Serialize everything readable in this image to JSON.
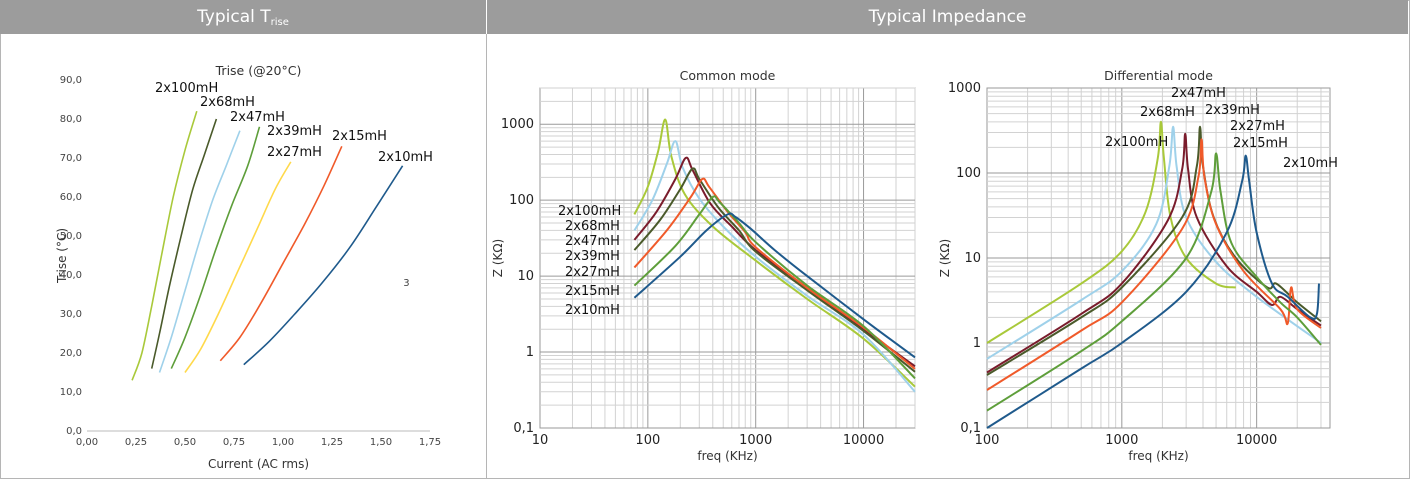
{
  "header": {
    "left_title": "Typical T",
    "left_title_sub": "rise",
    "right_title": "Typical Impedance"
  },
  "colors": {
    "2x100mH": "#a9c93a",
    "2x68mH": "#9fd1ea",
    "2x47mH": "#7a1c2c",
    "2x39mH": "#4a5a2a",
    "2x27mH": "#f08a2c",
    "2x15mH": "#5e9e3a",
    "2x10mH": "#1f5a8c"
  },
  "chart_data": [
    {
      "type": "line",
      "title": "Trise (@20°C)",
      "xlabel": "Current (AC rms)",
      "ylabel": "Trise (°C)",
      "xlim": [
        0,
        1.75
      ],
      "ylim": [
        0,
        90
      ],
      "xticks": [
        "0,00",
        "0,25",
        "0,50",
        "0,75",
        "1,00",
        "1,25",
        "1,50",
        "1,75"
      ],
      "yticks": [
        "0,0",
        "10,0",
        "20,0",
        "30,0",
        "40,0",
        "50,0",
        "60,0",
        "70,0",
        "80,0",
        "90,0"
      ],
      "annotation": "3",
      "series": [
        {
          "name": "2x100mH",
          "color": "#a9c93a",
          "points": [
            [
              0.23,
              13
            ],
            [
              0.28,
              20
            ],
            [
              0.33,
              32
            ],
            [
              0.38,
              45
            ],
            [
              0.44,
              60
            ],
            [
              0.5,
              72
            ],
            [
              0.56,
              82
            ]
          ]
        },
        {
          "name": "2x68mH",
          "color": "#4a5a2a",
          "points": [
            [
              0.33,
              16
            ],
            [
              0.37,
              25
            ],
            [
              0.42,
              37
            ],
            [
              0.48,
              50
            ],
            [
              0.54,
              62
            ],
            [
              0.6,
              71
            ],
            [
              0.66,
              80
            ]
          ]
        },
        {
          "name": "2x47mH",
          "color": "#9fd1ea",
          "points": [
            [
              0.37,
              15
            ],
            [
              0.43,
              24
            ],
            [
              0.5,
              36
            ],
            [
              0.57,
              48
            ],
            [
              0.64,
              59
            ],
            [
              0.71,
              68
            ],
            [
              0.78,
              77
            ]
          ]
        },
        {
          "name": "2x39mH",
          "color": "#5e9e3a",
          "points": [
            [
              0.43,
              16
            ],
            [
              0.5,
              24
            ],
            [
              0.58,
              35
            ],
            [
              0.66,
              47
            ],
            [
              0.74,
              58
            ],
            [
              0.82,
              68
            ],
            [
              0.88,
              78
            ]
          ]
        },
        {
          "name": "2x27mH",
          "color": "#ffd94a",
          "points": [
            [
              0.5,
              15
            ],
            [
              0.58,
              21
            ],
            [
              0.67,
              30
            ],
            [
              0.77,
              41
            ],
            [
              0.87,
              52
            ],
            [
              0.96,
              62
            ],
            [
              1.04,
              69
            ]
          ]
        },
        {
          "name": "2x15mH",
          "color": "#f05a2a",
          "points": [
            [
              0.68,
              18
            ],
            [
              0.78,
              24
            ],
            [
              0.89,
              33
            ],
            [
              1.0,
              43
            ],
            [
              1.11,
              53
            ],
            [
              1.21,
              63
            ],
            [
              1.3,
              73
            ]
          ]
        },
        {
          "name": "2x10mH",
          "color": "#1f5a8c",
          "points": [
            [
              0.8,
              17
            ],
            [
              0.93,
              23
            ],
            [
              1.06,
              30
            ],
            [
              1.2,
              38
            ],
            [
              1.34,
              47
            ],
            [
              1.47,
              57
            ],
            [
              1.61,
              68
            ]
          ]
        }
      ]
    },
    {
      "type": "line",
      "title": "Common mode",
      "xlabel": "freq (KHz)",
      "ylabel": "Z (KΩ)",
      "xscale": "log",
      "yscale": "log",
      "xlim": [
        10,
        30000
      ],
      "ylim": [
        0.1,
        3000
      ],
      "xticks": [
        "10",
        "100",
        "1000",
        "10000"
      ],
      "yticks": [
        "0,1",
        "1",
        "10",
        "100",
        "1000"
      ],
      "series": [
        {
          "name": "2x100mH",
          "color": "#a9c93a",
          "points": [
            [
              75,
              65
            ],
            [
              100,
              150
            ],
            [
              125,
              450
            ],
            [
              145,
              1150
            ],
            [
              165,
              380
            ],
            [
              220,
              120
            ],
            [
              400,
              45
            ],
            [
              1000,
              16
            ],
            [
              3000,
              5
            ],
            [
              10000,
              1.5
            ],
            [
              30000,
              0.35
            ]
          ]
        },
        {
          "name": "2x68mH",
          "color": "#9fd1ea",
          "points": [
            [
              75,
              40
            ],
            [
              110,
              100
            ],
            [
              150,
              300
            ],
            [
              180,
              600
            ],
            [
              210,
              270
            ],
            [
              300,
              105
            ],
            [
              500,
              45
            ],
            [
              1000,
              18
            ],
            [
              3000,
              5.5
            ],
            [
              10000,
              1.7
            ],
            [
              30000,
              0.3
            ]
          ]
        },
        {
          "name": "2x47mH",
          "color": "#7a1c2c",
          "points": [
            [
              75,
              30
            ],
            [
              120,
              70
            ],
            [
              180,
              190
            ],
            [
              225,
              360
            ],
            [
              260,
              250
            ],
            [
              380,
              90
            ],
            [
              600,
              45
            ],
            [
              1000,
              22
            ],
            [
              3000,
              7
            ],
            [
              10000,
              2
            ],
            [
              30000,
              0.65
            ]
          ]
        },
        {
          "name": "2x39mH",
          "color": "#4a5a2a",
          "points": [
            [
              75,
              22
            ],
            [
              130,
              55
            ],
            [
              200,
              140
            ],
            [
              260,
              260
            ],
            [
              300,
              190
            ],
            [
              450,
              80
            ],
            [
              700,
              40
            ],
            [
              1000,
              21
            ],
            [
              3000,
              6.5
            ],
            [
              10000,
              1.9
            ],
            [
              30000,
              0.55
            ]
          ]
        },
        {
          "name": "2x27mH",
          "color": "#f05a2a",
          "points": [
            [
              75,
              13
            ],
            [
              150,
              40
            ],
            [
              250,
              110
            ],
            [
              320,
              190
            ],
            [
              370,
              150
            ],
            [
              550,
              70
            ],
            [
              800,
              38
            ],
            [
              1000,
              24
            ],
            [
              3000,
              7
            ],
            [
              10000,
              2.1
            ],
            [
              30000,
              0.6
            ]
          ]
        },
        {
          "name": "2x15mH",
          "color": "#5e9e3a",
          "points": [
            [
              75,
              7.5
            ],
            [
              180,
              25
            ],
            [
              300,
              65
            ],
            [
              400,
              110
            ],
            [
              460,
              95
            ],
            [
              700,
              50
            ],
            [
              1000,
              28
            ],
            [
              3000,
              7.5
            ],
            [
              10000,
              2.2
            ],
            [
              30000,
              0.45
            ]
          ]
        },
        {
          "name": "2x10mH",
          "color": "#1f5a8c",
          "points": [
            [
              75,
              5.2
            ],
            [
              200,
              18
            ],
            [
              350,
              40
            ],
            [
              550,
              65
            ],
            [
              650,
              60
            ],
            [
              900,
              42
            ],
            [
              1500,
              22
            ],
            [
              3000,
              10
            ],
            [
              10000,
              2.7
            ],
            [
              30000,
              0.85
            ]
          ]
        }
      ]
    },
    {
      "type": "line",
      "title": "Differential  mode",
      "xlabel": "freq (KHz)",
      "ylabel": "Z (KΩ)",
      "xscale": "log",
      "yscale": "log",
      "xlim": [
        100,
        35000
      ],
      "ylim": [
        0.1,
        1000
      ],
      "xticks": [
        "100",
        "1000",
        "10000"
      ],
      "yticks": [
        "0,1",
        "1",
        "10",
        "100",
        "1000"
      ],
      "series": [
        {
          "name": "2x100mH",
          "color": "#a9c93a",
          "points": [
            [
              100,
              1
            ],
            [
              500,
              5
            ],
            [
              1000,
              12
            ],
            [
              1500,
              35
            ],
            [
              1850,
              150
            ],
            [
              1950,
              400
            ],
            [
              2050,
              150
            ],
            [
              2300,
              30
            ],
            [
              3000,
              10
            ],
            [
              5000,
              5
            ],
            [
              7000,
              4.5
            ]
          ]
        },
        {
          "name": "2x68mH",
          "color": "#9fd1ea",
          "points": [
            [
              100,
              0.65
            ],
            [
              500,
              3.2
            ],
            [
              1000,
              7
            ],
            [
              1800,
              25
            ],
            [
              2250,
              120
            ],
            [
              2400,
              350
            ],
            [
              2550,
              120
            ],
            [
              3000,
              30
            ],
            [
              5000,
              9
            ],
            [
              10000,
              3.5
            ],
            [
              30000,
              1
            ]
          ]
        },
        {
          "name": "2x47mH",
          "color": "#7a1c2c",
          "points": [
            [
              100,
              0.45
            ],
            [
              500,
              2.2
            ],
            [
              1000,
              5
            ],
            [
              2200,
              28
            ],
            [
              2800,
              110
            ],
            [
              2950,
              290
            ],
            [
              3100,
              110
            ],
            [
              3600,
              30
            ],
            [
              6000,
              8
            ],
            [
              10000,
              4
            ],
            [
              13000,
              2.8
            ],
            [
              15000,
              3.5
            ],
            [
              20000,
              2.5
            ],
            [
              30000,
              1.6
            ]
          ]
        },
        {
          "name": "2x39mH",
          "color": "#4a5a2a",
          "points": [
            [
              100,
              0.42
            ],
            [
              500,
              2
            ],
            [
              1000,
              4.5
            ],
            [
              2800,
              30
            ],
            [
              3600,
              120
            ],
            [
              3800,
              350
            ],
            [
              4000,
              120
            ],
            [
              4800,
              30
            ],
            [
              7000,
              10
            ],
            [
              12000,
              4.5
            ],
            [
              14000,
              5
            ],
            [
              20000,
              3
            ],
            [
              30000,
              1.8
            ]
          ]
        },
        {
          "name": "2x27mH",
          "color": "#f05a2a",
          "points": [
            [
              100,
              0.28
            ],
            [
              500,
              1.4
            ],
            [
              1000,
              3
            ],
            [
              2800,
              22
            ],
            [
              3700,
              90
            ],
            [
              3900,
              250
            ],
            [
              4100,
              90
            ],
            [
              5000,
              25
            ],
            [
              8000,
              7
            ],
            [
              15000,
              2.5
            ],
            [
              17000,
              1.7
            ],
            [
              18000,
              4.5
            ],
            [
              20000,
              2.5
            ],
            [
              30000,
              1.5
            ]
          ]
        },
        {
          "name": "2x15mH",
          "color": "#5e9e3a",
          "points": [
            [
              100,
              0.16
            ],
            [
              500,
              0.8
            ],
            [
              1000,
              1.8
            ],
            [
              3000,
              10
            ],
            [
              4600,
              60
            ],
            [
              5000,
              170
            ],
            [
              5400,
              60
            ],
            [
              6500,
              15
            ],
            [
              10000,
              6
            ],
            [
              15000,
              3
            ],
            [
              20000,
              2
            ],
            [
              30000,
              0.95
            ]
          ]
        },
        {
          "name": "2x10mH",
          "color": "#1f5a8c",
          "points": [
            [
              100,
              0.1
            ],
            [
              500,
              0.5
            ],
            [
              1000,
              1
            ],
            [
              3000,
              4
            ],
            [
              6000,
              20
            ],
            [
              7800,
              80
            ],
            [
              8300,
              160
            ],
            [
              8800,
              80
            ],
            [
              10000,
              20
            ],
            [
              13000,
              5
            ],
            [
              17000,
              3.5
            ],
            [
              25000,
              2
            ],
            [
              28000,
              2.2
            ],
            [
              29000,
              5
            ]
          ]
        }
      ]
    }
  ]
}
